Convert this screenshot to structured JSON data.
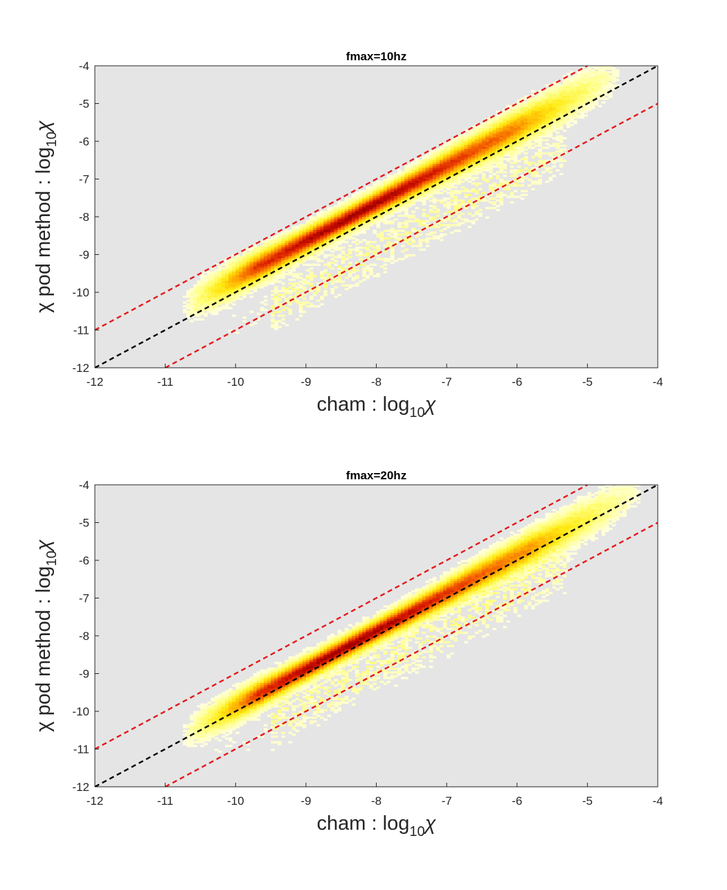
{
  "chart_data": [
    {
      "type": "heatmap",
      "title": "fmax=10hz",
      "xlabel": {
        "prefix": "cham : log",
        "subscript": "10",
        "symbol": "χ"
      },
      "ylabel": {
        "prefix": "χ pod method : log",
        "subscript": "10",
        "symbol": "χ"
      },
      "xlim": [
        -12,
        -4
      ],
      "ylim": [
        -12,
        -4
      ],
      "xticks": [
        "-12",
        "-11",
        "-10",
        "-9",
        "-8",
        "-7",
        "-6",
        "-5",
        "-4"
      ],
      "yticks": [
        "-4",
        "-5",
        "-6",
        "-7",
        "-8",
        "-9",
        "-10",
        "-11",
        "-12"
      ],
      "grid": false,
      "background_color": "#e5e5e5",
      "colormap": "hot",
      "density_ridge": {
        "x_range": [
          -10.8,
          -4.5
        ],
        "center_offset": 0.35,
        "spread": 0.28,
        "peak_x": -8.3,
        "scatter_offset": -0.9
      },
      "reference_lines": [
        {
          "style": "dashed",
          "color": "#000000",
          "from": [
            -12,
            -12
          ],
          "to": [
            -4,
            -4
          ]
        },
        {
          "style": "dashed",
          "color": "#e41a1c",
          "from": [
            -12,
            -11
          ],
          "to": [
            -5,
            -4
          ]
        },
        {
          "style": "dashed",
          "color": "#e41a1c",
          "from": [
            -11,
            -12
          ],
          "to": [
            -4,
            -5
          ]
        }
      ]
    },
    {
      "type": "heatmap",
      "title": "fmax=20hz",
      "xlabel": {
        "prefix": "cham : log",
        "subscript": "10",
        "symbol": "χ"
      },
      "ylabel": {
        "prefix": "χ pod method : log",
        "subscript": "10",
        "symbol": "χ"
      },
      "xlim": [
        -12,
        -4
      ],
      "ylim": [
        -12,
        -4
      ],
      "xticks": [
        "-12",
        "-11",
        "-10",
        "-9",
        "-8",
        "-7",
        "-6",
        "-5",
        "-4"
      ],
      "yticks": [
        "-4",
        "-5",
        "-6",
        "-7",
        "-8",
        "-9",
        "-10",
        "-11",
        "-12"
      ],
      "grid": false,
      "background_color": "#e5e5e5",
      "colormap": "hot",
      "density_ridge": {
        "x_range": [
          -10.8,
          -4.2
        ],
        "center_offset": 0.12,
        "spread": 0.26,
        "peak_x": -8.4,
        "scatter_offset": -0.8
      },
      "reference_lines": [
        {
          "style": "dashed",
          "color": "#000000",
          "from": [
            -12,
            -12
          ],
          "to": [
            -4,
            -4
          ]
        },
        {
          "style": "dashed",
          "color": "#e41a1c",
          "from": [
            -12,
            -11
          ],
          "to": [
            -5,
            -4
          ]
        },
        {
          "style": "dashed",
          "color": "#e41a1c",
          "from": [
            -11,
            -12
          ],
          "to": [
            -4,
            -5
          ]
        }
      ]
    }
  ]
}
